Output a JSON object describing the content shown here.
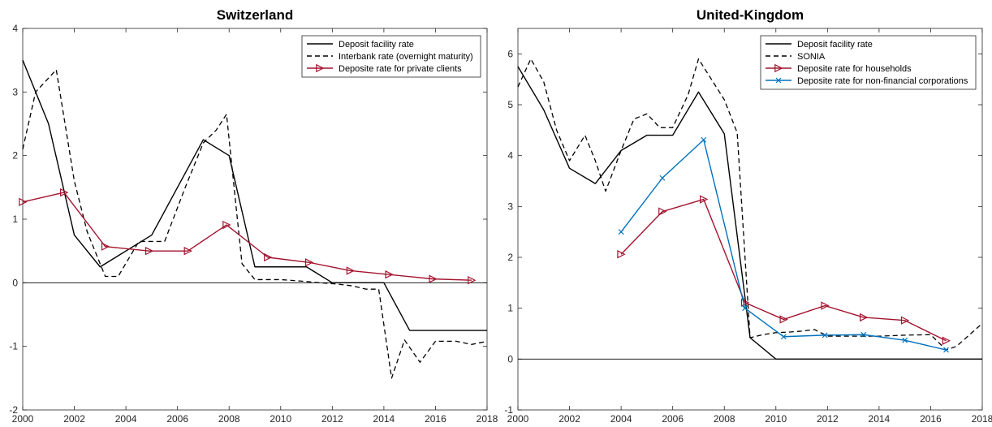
{
  "chart_data": [
    {
      "type": "line",
      "title": "Switzerland",
      "xlim": [
        2000,
        2018
      ],
      "ylim": [
        -2,
        4
      ],
      "xticks": [
        2000,
        2002,
        2004,
        2006,
        2008,
        2010,
        2012,
        2014,
        2016,
        2018
      ],
      "yticks": [
        -2,
        -1,
        0,
        1,
        2,
        3,
        4
      ],
      "zero_line": true,
      "legend_position": "top-right",
      "series": [
        {
          "name": "Deposit facility rate",
          "style": "solid",
          "color": "#000000",
          "marker": "none",
          "x": [
            2000,
            2001,
            2002,
            2003,
            2005,
            2007,
            2008,
            2009,
            2010,
            2011,
            2012,
            2013,
            2014,
            2015,
            2016,
            2017,
            2018
          ],
          "y": [
            3.5,
            2.5,
            0.75,
            0.25,
            0.75,
            2.25,
            2.0,
            0.25,
            0.25,
            0.25,
            0.0,
            0.0,
            0.0,
            -0.75,
            -0.75,
            -0.75,
            -0.75
          ]
        },
        {
          "name": "Interbank rate (overnight maturity)",
          "style": "dashed",
          "color": "#000000",
          "marker": "none",
          "x": [
            2000,
            2000.5,
            2001.3,
            2002,
            2002.5,
            2003.2,
            2003.7,
            2004.5,
            2005.5,
            2006.3,
            2007,
            2007.5,
            2007.9,
            2008.5,
            2009,
            2010,
            2011,
            2011.5,
            2012.2,
            2012.8,
            2013.3,
            2013.8,
            2014.3,
            2014.8,
            2015.4,
            2016,
            2016.8,
            2017.4,
            2018
          ],
          "y": [
            2.1,
            3.0,
            3.35,
            1.6,
            0.8,
            0.1,
            0.1,
            0.65,
            0.65,
            1.5,
            2.2,
            2.4,
            2.65,
            0.3,
            0.05,
            0.05,
            0.02,
            0.0,
            -0.02,
            -0.05,
            -0.1,
            -0.1,
            -1.5,
            -0.9,
            -1.25,
            -0.92,
            -0.92,
            -0.97,
            -0.92
          ]
        },
        {
          "name": "Deposite rate for private clients",
          "style": "solid",
          "color": "#a2142f",
          "marker": "triangle-right",
          "x": [
            2000,
            2001.6,
            2003.2,
            2004.9,
            2006.4,
            2007.9,
            2009.5,
            2011.1,
            2012.7,
            2014.2,
            2015.9,
            2017.4
          ],
          "y": [
            1.27,
            1.42,
            0.57,
            0.5,
            0.5,
            0.91,
            0.4,
            0.32,
            0.19,
            0.13,
            0.06,
            0.04
          ]
        }
      ]
    },
    {
      "type": "line",
      "title": "United-Kingdom",
      "xlim": [
        2000,
        2018
      ],
      "ylim": [
        -1,
        6.5
      ],
      "xticks": [
        2000,
        2002,
        2004,
        2006,
        2008,
        2010,
        2012,
        2014,
        2016,
        2018
      ],
      "yticks": [
        -1,
        0,
        1,
        2,
        3,
        4,
        5,
        6
      ],
      "zero_line": true,
      "legend_position": "top-right",
      "series": [
        {
          "name": "Deposit facility rate",
          "style": "solid",
          "color": "#000000",
          "marker": "none",
          "x": [
            2000,
            2001,
            2002,
            2003,
            2004,
            2005,
            2006,
            2007,
            2008,
            2009,
            2010,
            2011,
            2012,
            2013,
            2014,
            2015,
            2016,
            2017,
            2018
          ],
          "y": [
            5.75,
            4.9,
            3.75,
            3.45,
            4.1,
            4.4,
            4.4,
            5.25,
            4.43,
            0.42,
            0.0,
            0.0,
            0.0,
            0.0,
            0.0,
            0.0,
            0.0,
            0.0,
            0.0
          ]
        },
        {
          "name": "SONIA",
          "style": "dashed",
          "color": "#000000",
          "marker": "none",
          "x": [
            2000,
            2000.5,
            2001,
            2001.5,
            2002,
            2002.6,
            2003,
            2003.4,
            2004,
            2004.5,
            2005,
            2005.5,
            2006,
            2006.6,
            2007,
            2007.5,
            2008,
            2008.5,
            2009,
            2009.5,
            2010,
            2010.5,
            2011,
            2011.5,
            2012,
            2013,
            2014,
            2015,
            2016,
            2016.6,
            2017,
            2018
          ],
          "y": [
            5.35,
            5.9,
            5.45,
            4.5,
            3.9,
            4.4,
            3.9,
            3.3,
            4.1,
            4.72,
            4.82,
            4.55,
            4.55,
            5.2,
            5.9,
            5.5,
            5.1,
            4.45,
            0.42,
            0.48,
            0.52,
            0.53,
            0.55,
            0.58,
            0.45,
            0.45,
            0.45,
            0.47,
            0.48,
            0.18,
            0.25,
            0.7
          ]
        },
        {
          "name": "Deposite rate for households",
          "style": "solid",
          "color": "#a2142f",
          "marker": "triangle-right",
          "x": [
            2004,
            2005.6,
            2007.2,
            2008.8,
            2010.3,
            2011.9,
            2013.4,
            2015,
            2016.6
          ],
          "y": [
            2.06,
            2.9,
            3.14,
            1.11,
            0.78,
            1.05,
            0.82,
            0.76,
            0.36
          ]
        },
        {
          "name": "Deposite rate for non-financial corporations",
          "style": "solid",
          "color": "#0072bd",
          "marker": "x",
          "x": [
            2004,
            2005.6,
            2007.2,
            2008.8,
            2010.3,
            2011.9,
            2013.4,
            2015,
            2016.6
          ],
          "y": [
            2.5,
            3.56,
            4.31,
            1.0,
            0.44,
            0.47,
            0.48,
            0.37,
            0.18
          ]
        }
      ]
    }
  ]
}
